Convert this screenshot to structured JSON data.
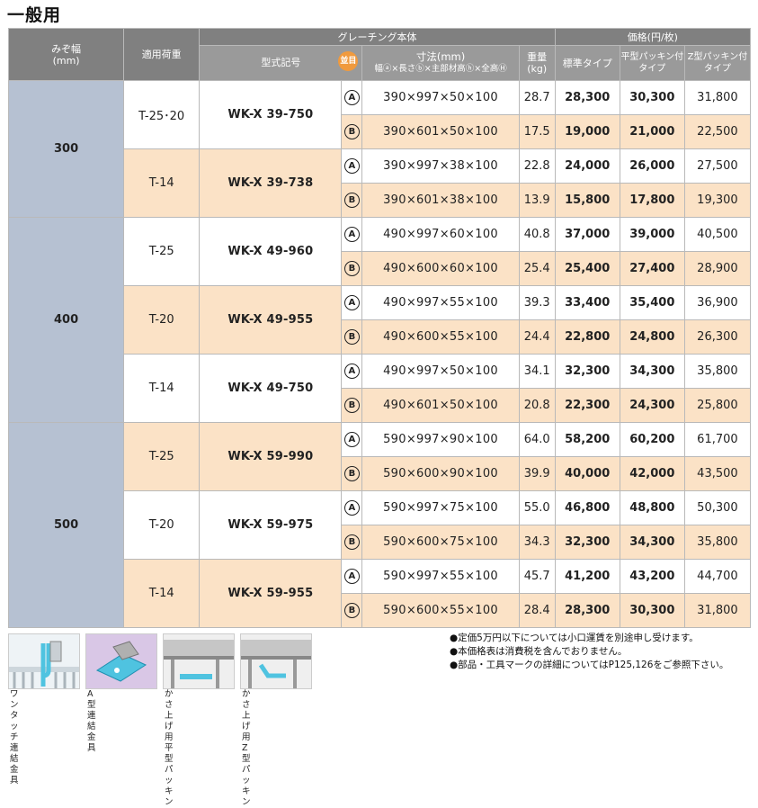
{
  "title": "一般用",
  "header": {
    "width": "みぞ幅\n(mm)",
    "load": "適用荷重",
    "body_group": "グレーチング本体",
    "model": "型式記号",
    "badge": "並目",
    "dim_top": "寸法(mm)",
    "dim_sub": "幅ⓐ×長さⓑ×主部材高ⓗ×全高Ⓗ",
    "weight": "重量\n(kg)",
    "price_group": "価格(円/枚)",
    "std": "標準タイプ",
    "flat": "平型パッキン付\nタイプ",
    "z": "Z型パッキン付\nタイプ"
  },
  "groups": [
    {
      "width": "300",
      "models": [
        {
          "load": "T-25･20",
          "model": "WK-X 39-750",
          "shade": "white",
          "rows": [
            {
              "type": "A",
              "dim": "390×997×50×100",
              "weight": "28.7",
              "std": "28,300",
              "flat": "30,300",
              "z": "31,800"
            },
            {
              "type": "B",
              "dim": "390×601×50×100",
              "weight": "17.5",
              "std": "19,000",
              "flat": "21,000",
              "z": "22,500"
            }
          ]
        },
        {
          "load": "T-14",
          "model": "WK-X 39-738",
          "shade": "peach",
          "rows": [
            {
              "type": "A",
              "dim": "390×997×38×100",
              "weight": "22.8",
              "std": "24,000",
              "flat": "26,000",
              "z": "27,500"
            },
            {
              "type": "B",
              "dim": "390×601×38×100",
              "weight": "13.9",
              "std": "15,800",
              "flat": "17,800",
              "z": "19,300"
            }
          ]
        }
      ]
    },
    {
      "width": "400",
      "models": [
        {
          "load": "T-25",
          "model": "WK-X 49-960",
          "shade": "white",
          "rows": [
            {
              "type": "A",
              "dim": "490×997×60×100",
              "weight": "40.8",
              "std": "37,000",
              "flat": "39,000",
              "z": "40,500"
            },
            {
              "type": "B",
              "dim": "490×600×60×100",
              "weight": "25.4",
              "std": "25,400",
              "flat": "27,400",
              "z": "28,900"
            }
          ]
        },
        {
          "load": "T-20",
          "model": "WK-X 49-955",
          "shade": "peach",
          "rows": [
            {
              "type": "A",
              "dim": "490×997×55×100",
              "weight": "39.3",
              "std": "33,400",
              "flat": "35,400",
              "z": "36,900"
            },
            {
              "type": "B",
              "dim": "490×600×55×100",
              "weight": "24.4",
              "std": "22,800",
              "flat": "24,800",
              "z": "26,300"
            }
          ]
        },
        {
          "load": "T-14",
          "model": "WK-X 49-750",
          "shade": "white",
          "rows": [
            {
              "type": "A",
              "dim": "490×997×50×100",
              "weight": "34.1",
              "std": "32,300",
              "flat": "34,300",
              "z": "35,800"
            },
            {
              "type": "B",
              "dim": "490×601×50×100",
              "weight": "20.8",
              "std": "22,300",
              "flat": "24,300",
              "z": "25,800"
            }
          ]
        }
      ]
    },
    {
      "width": "500",
      "models": [
        {
          "load": "T-25",
          "model": "WK-X 59-990",
          "shade": "peach",
          "rows": [
            {
              "type": "A",
              "dim": "590×997×90×100",
              "weight": "64.0",
              "std": "58,200",
              "flat": "60,200",
              "z": "61,700"
            },
            {
              "type": "B",
              "dim": "590×600×90×100",
              "weight": "39.9",
              "std": "40,000",
              "flat": "42,000",
              "z": "43,500"
            }
          ]
        },
        {
          "load": "T-20",
          "model": "WK-X 59-975",
          "shade": "white",
          "rows": [
            {
              "type": "A",
              "dim": "590×997×75×100",
              "weight": "55.0",
              "std": "46,800",
              "flat": "48,800",
              "z": "50,300"
            },
            {
              "type": "B",
              "dim": "590×600×75×100",
              "weight": "34.3",
              "std": "32,300",
              "flat": "34,300",
              "z": "35,800"
            }
          ]
        },
        {
          "load": "T-14",
          "model": "WK-X 59-955",
          "shade": "peach",
          "rows": [
            {
              "type": "A",
              "dim": "590×997×55×100",
              "weight": "45.7",
              "std": "41,200",
              "flat": "43,200",
              "z": "44,700"
            },
            {
              "type": "B",
              "dim": "590×600×55×100",
              "weight": "28.4",
              "std": "28,300",
              "flat": "30,300",
              "z": "31,800"
            }
          ]
        }
      ]
    }
  ],
  "notes": [
    "●定価5万円以下については小口運賃を別途申し受けます。",
    "●本価格表は消費税を含んでおりません。",
    "●部品・工具マークの詳細についてはP125,126をご参照下さい。"
  ],
  "parts": [
    {
      "label": "ワンタッチ\n連結金具",
      "icon": "one-touch-clip-icon",
      "bg": "#eef3f6"
    },
    {
      "label": "A型連結金具",
      "icon": "a-type-clip-icon",
      "bg": "#d9c7e6"
    },
    {
      "label": "かさ上げ用\n平型パッキン",
      "icon": "flat-packing-icon",
      "bg": "#efefef"
    },
    {
      "label": "かさ上げ用\nZ型パッキン",
      "icon": "z-packing-icon",
      "bg": "#efefef"
    }
  ]
}
